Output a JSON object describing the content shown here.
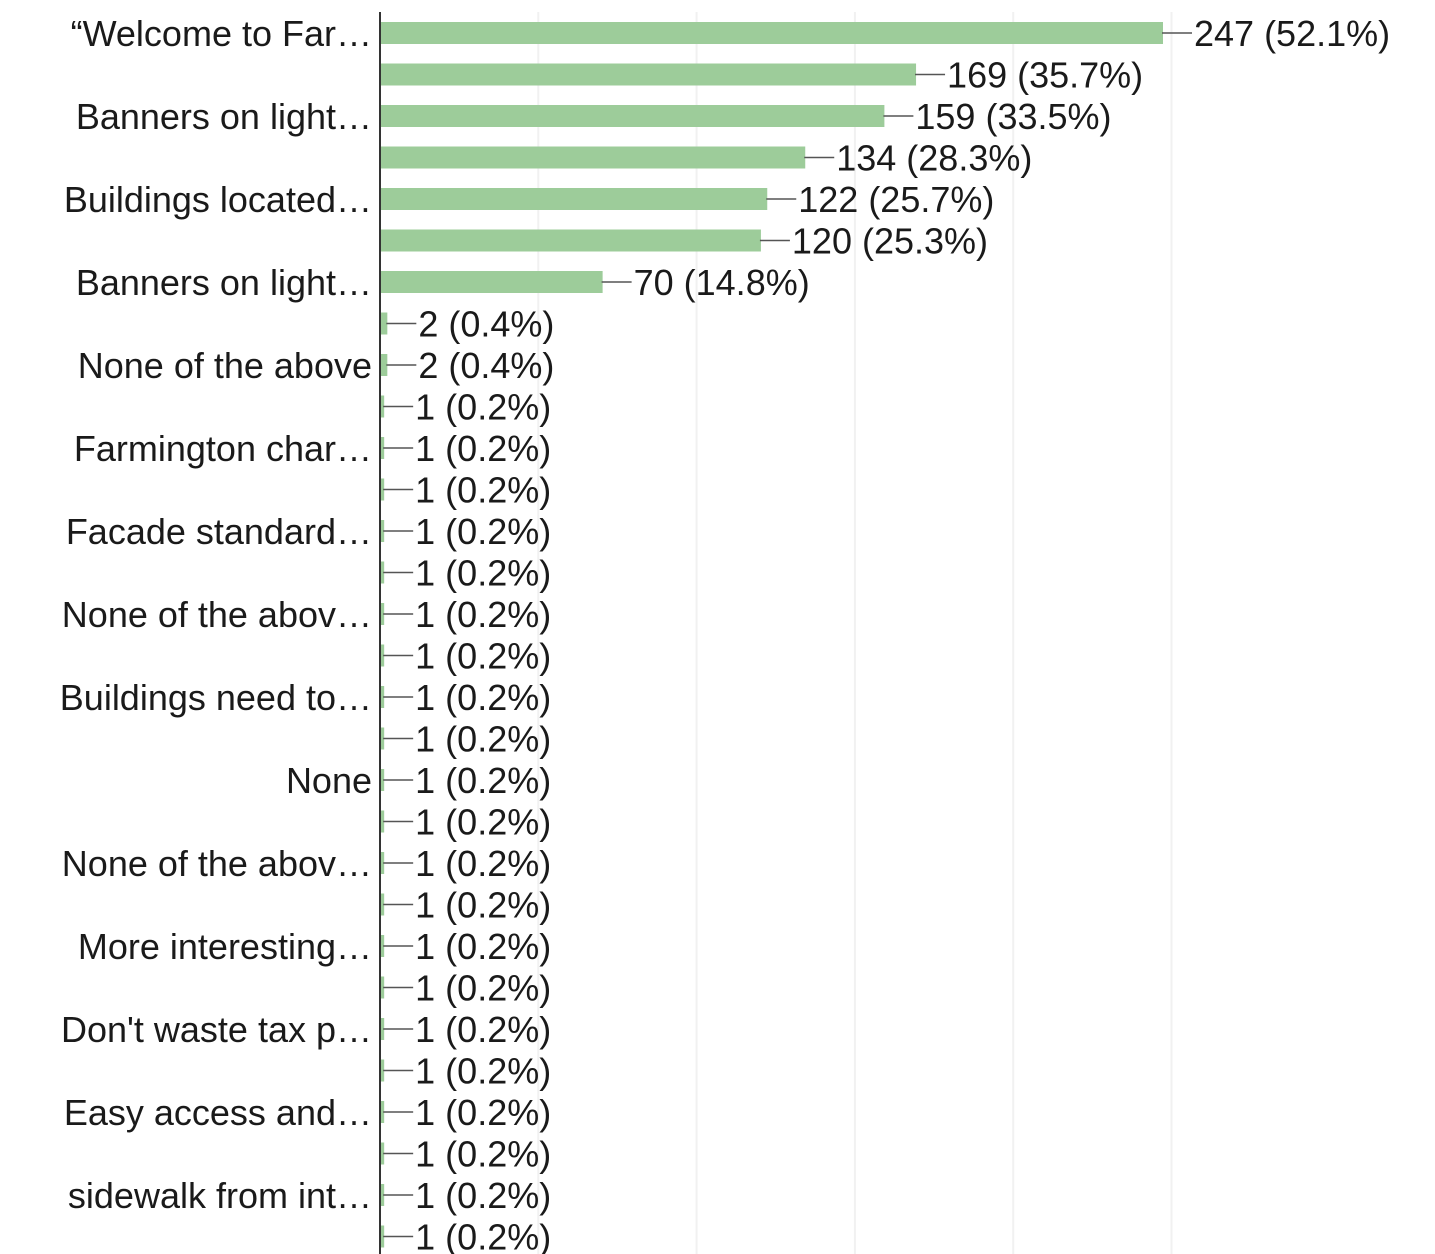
{
  "chart_data": {
    "type": "bar",
    "orientation": "horizontal",
    "bar_color": "#9dcc9a",
    "axis_color": "#333333",
    "grid": true,
    "categories": [
      "“Welcome to Far…",
      "",
      "Banners on light…",
      "",
      "Buildings located…",
      "",
      "Banners on light…",
      "",
      "None of the above",
      "",
      "Farmington char…",
      "",
      "Facade standard…",
      "",
      "None of the abov…",
      "",
      "Buildings need to…",
      "",
      "None",
      "",
      "None of the abov…",
      "",
      "More interesting…",
      "",
      "Don't waste tax p…",
      "",
      "Easy access and…",
      "",
      "sidewalk from int…",
      ""
    ],
    "values": [
      247,
      169,
      159,
      134,
      122,
      120,
      70,
      2,
      2,
      1,
      1,
      1,
      1,
      1,
      1,
      1,
      1,
      1,
      1,
      1,
      1,
      1,
      1,
      1,
      1,
      1,
      1,
      1,
      1,
      1
    ],
    "value_labels": [
      "247 (52.1%)",
      "169 (35.7%)",
      "159 (33.5%)",
      "134 (28.3%)",
      "122 (25.7%)",
      "120 (25.3%)",
      "70 (14.8%)",
      "2 (0.4%)",
      "2 (0.4%)",
      "1 (0.2%)",
      "1 (0.2%)",
      "1 (0.2%)",
      "1 (0.2%)",
      "1 (0.2%)",
      "1 (0.2%)",
      "1 (0.2%)",
      "1 (0.2%)",
      "1 (0.2%)",
      "1 (0.2%)",
      "1 (0.2%)",
      "1 (0.2%)",
      "1 (0.2%)",
      "1 (0.2%)",
      "1 (0.2%)",
      "1 (0.2%)",
      "1 (0.2%)",
      "1 (0.2%)",
      "1 (0.2%)",
      "1 (0.2%)",
      "1 (0.2%)"
    ],
    "xlim": [
      0,
      300
    ],
    "title": "",
    "xlabel": "",
    "ylabel": ""
  }
}
